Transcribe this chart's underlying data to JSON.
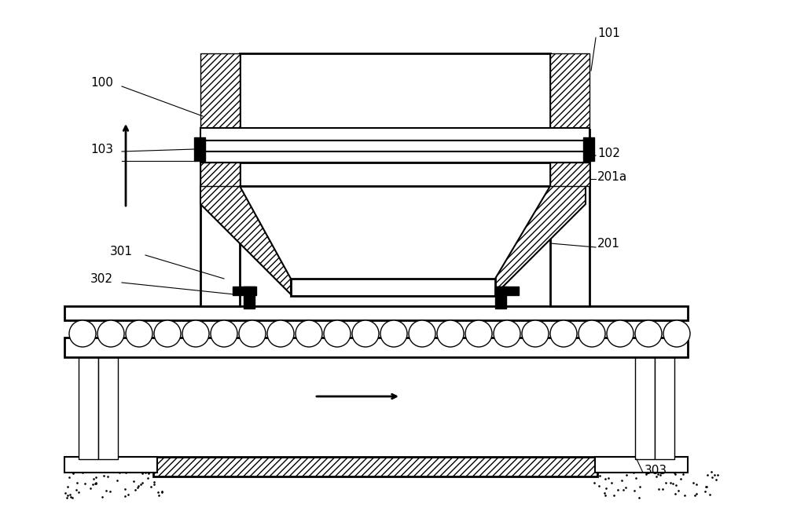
{
  "bg_color": "#ffffff",
  "line_color": "#000000",
  "figsize": [
    10.0,
    6.65
  ],
  "dpi": 100
}
